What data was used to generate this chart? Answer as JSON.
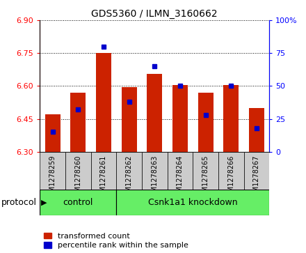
{
  "title": "GDS5360 / ILMN_3160662",
  "samples": [
    "GSM1278259",
    "GSM1278260",
    "GSM1278261",
    "GSM1278262",
    "GSM1278263",
    "GSM1278264",
    "GSM1278265",
    "GSM1278266",
    "GSM1278267"
  ],
  "red_values": [
    6.47,
    6.57,
    6.75,
    6.595,
    6.655,
    6.605,
    6.57,
    6.605,
    6.5
  ],
  "blue_values": [
    15,
    32,
    80,
    38,
    65,
    50,
    28,
    50,
    18
  ],
  "y_min": 6.3,
  "y_max": 6.9,
  "y_ticks": [
    6.3,
    6.45,
    6.6,
    6.75,
    6.9
  ],
  "y2_ticks": [
    0,
    25,
    50,
    75,
    100
  ],
  "y2_labels": [
    "0",
    "25",
    "50",
    "75",
    "100%"
  ],
  "control_count": 3,
  "bar_color": "#cc2200",
  "dot_color": "#0000cc",
  "bar_bottom": 6.3,
  "bar_width": 0.6,
  "tick_bg_color": "#cccccc",
  "proto_color": "#66ee66",
  "legend_items": [
    "transformed count",
    "percentile rank within the sample"
  ],
  "legend_colors": [
    "#cc2200",
    "#0000cc"
  ],
  "title_fontsize": 10,
  "tick_fontsize": 8,
  "proto_fontsize": 9
}
